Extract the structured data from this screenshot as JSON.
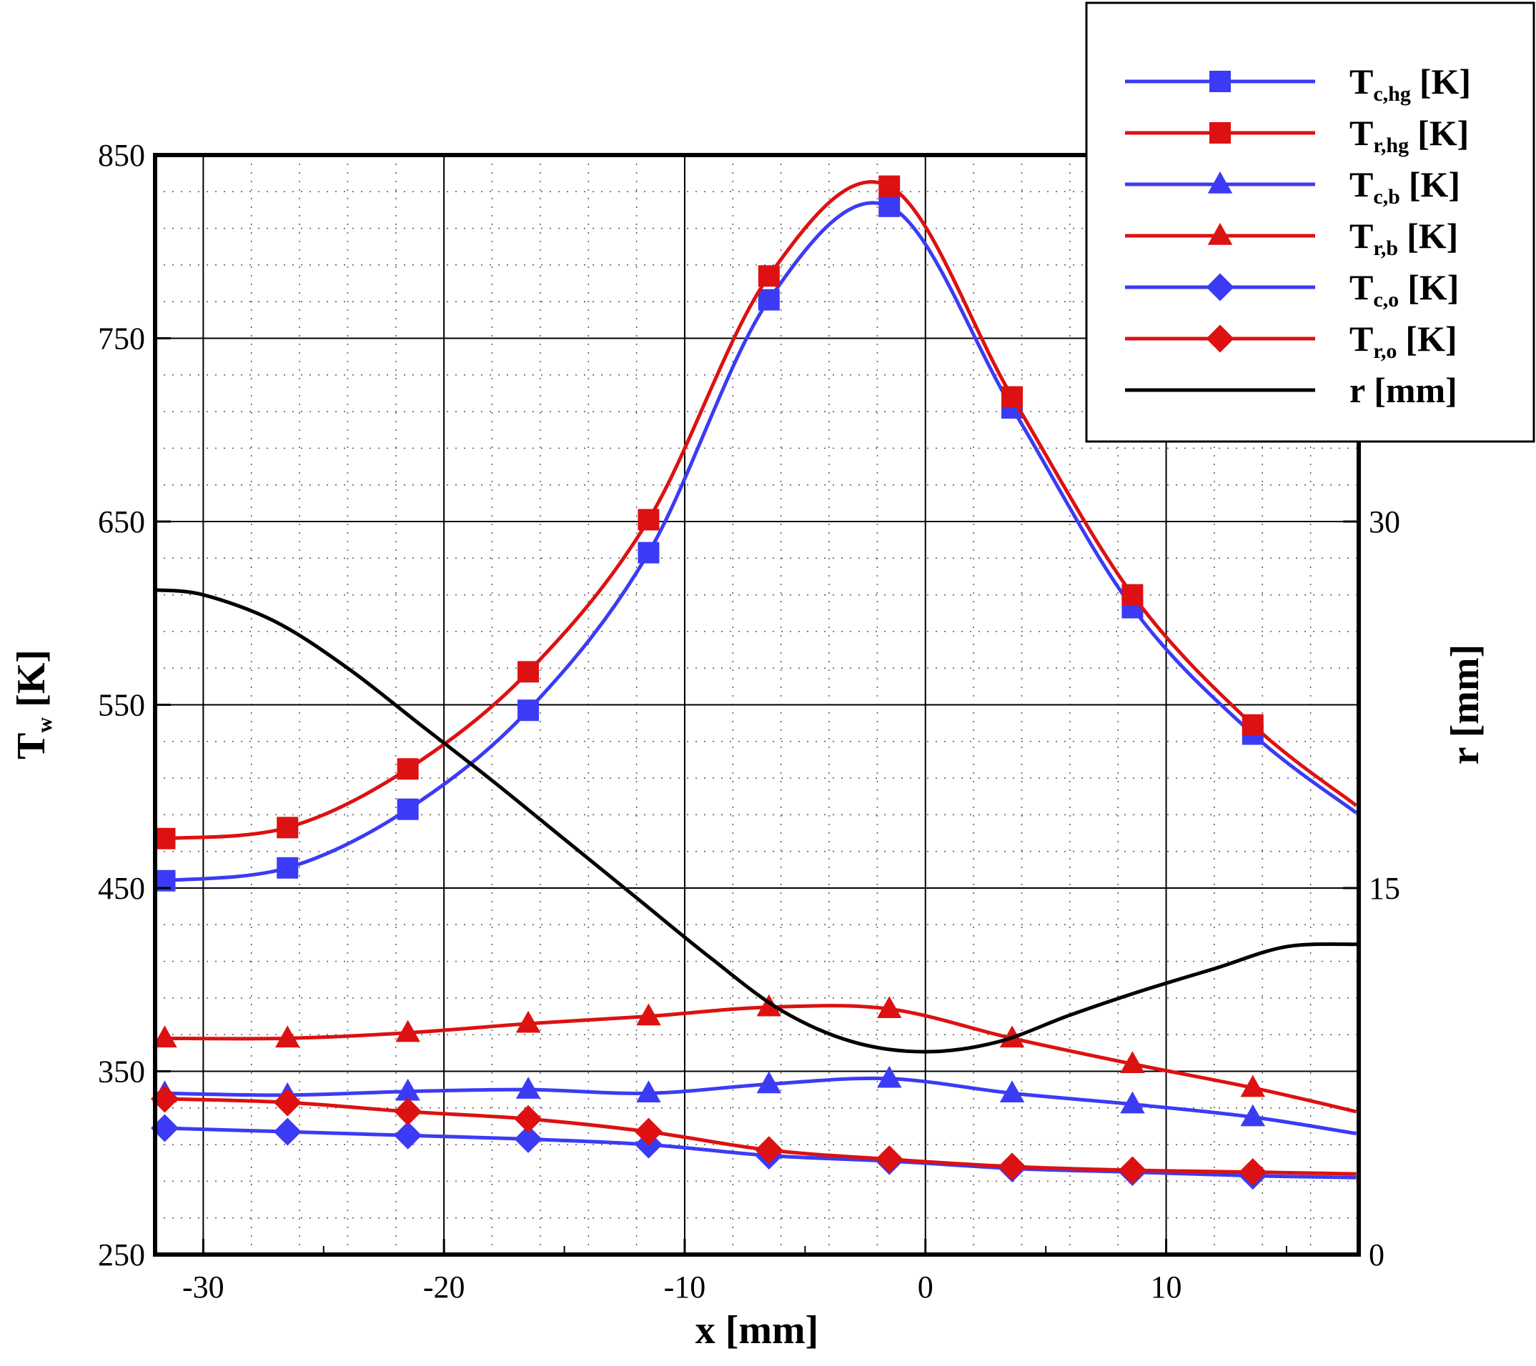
{
  "chart_data": {
    "type": "line",
    "title": "",
    "xlabel": "x [mm]",
    "ylabel": "T_w [K]",
    "ylabel_main": "T",
    "ylabel_sub": "w",
    "ylabel_unit": "[K]",
    "y2label": "r [mm]",
    "xlim": [
      -32,
      18
    ],
    "ylim": [
      250,
      850
    ],
    "y2lim": [
      0,
      45
    ],
    "xticks": [
      -30,
      -20,
      -10,
      0,
      10
    ],
    "yticks": [
      250,
      350,
      450,
      550,
      650,
      750,
      850
    ],
    "y2ticks": [
      0,
      15,
      30
    ],
    "grid": true,
    "legend_position": "top-right",
    "series": [
      {
        "name": "T_c,hg [K]",
        "legend_main": "T",
        "legend_sub": "c,hg",
        "legend_unit": "[K]",
        "color": "#3b3bf5",
        "marker": "square",
        "axis": "left",
        "x": [
          -31.6,
          -26.5,
          -21.5,
          -16.5,
          -11.5,
          -6.5,
          -1.5,
          3.6,
          8.6,
          13.6,
          17.9
        ],
        "values": [
          454,
          461,
          493,
          547,
          633,
          771,
          822,
          712,
          603,
          534,
          491
        ],
        "marker_x": [
          -31.6,
          -26.5,
          -21.5,
          -16.5,
          -11.5,
          -6.5,
          -1.5,
          3.6,
          8.6,
          13.6
        ]
      },
      {
        "name": "T_r,hg [K]",
        "legend_main": "T",
        "legend_sub": "r,hg",
        "legend_unit": "[K]",
        "color": "#dd1111",
        "marker": "square",
        "axis": "left",
        "x": [
          -31.6,
          -26.5,
          -21.5,
          -16.5,
          -11.5,
          -6.5,
          -1.5,
          3.6,
          8.6,
          13.6,
          17.9
        ],
        "values": [
          477,
          483,
          515,
          568,
          651,
          784,
          833,
          718,
          610,
          539,
          495
        ],
        "marker_x": [
          -31.6,
          -26.5,
          -21.5,
          -16.5,
          -11.5,
          -6.5,
          -1.5,
          3.6,
          8.6,
          13.6
        ]
      },
      {
        "name": "T_c,b [K]",
        "legend_main": "T",
        "legend_sub": "c,b",
        "legend_unit": "[K]",
        "color": "#3b3bf5",
        "marker": "triangle",
        "axis": "left",
        "x": [
          -31.6,
          -26.5,
          -21.5,
          -16.5,
          -11.5,
          -6.5,
          -1.5,
          3.6,
          8.6,
          13.6,
          17.9
        ],
        "values": [
          338,
          337,
          339,
          340,
          338,
          343,
          346,
          338,
          332,
          325,
          316
        ],
        "marker_x": [
          -31.6,
          -26.5,
          -21.5,
          -16.5,
          -11.5,
          -6.5,
          -1.5,
          3.6,
          8.6,
          13.6
        ]
      },
      {
        "name": "T_r,b [K]",
        "legend_main": "T",
        "legend_sub": "r,b",
        "legend_unit": "[K]",
        "color": "#dd1111",
        "marker": "triangle",
        "axis": "left",
        "x": [
          -31.6,
          -26.5,
          -21.5,
          -16.5,
          -11.5,
          -6.5,
          -1.5,
          3.6,
          8.6,
          13.6,
          17.9
        ],
        "values": [
          368,
          368,
          371,
          376,
          380,
          385,
          384,
          368,
          354,
          341,
          328
        ],
        "marker_x": [
          -31.6,
          -26.5,
          -21.5,
          -16.5,
          -11.5,
          -6.5,
          -1.5,
          3.6,
          8.6,
          13.6
        ]
      },
      {
        "name": "T_c,o [K]",
        "legend_main": "T",
        "legend_sub": "c,o",
        "legend_unit": "[K]",
        "color": "#3b3bf5",
        "marker": "diamond",
        "axis": "left",
        "x": [
          -31.6,
          -26.5,
          -21.5,
          -16.5,
          -11.5,
          -6.5,
          -1.5,
          3.6,
          8.6,
          13.6,
          17.9
        ],
        "values": [
          319,
          317,
          315,
          313,
          310,
          304,
          301,
          297,
          295,
          293,
          292
        ],
        "marker_x": [
          -31.6,
          -26.5,
          -21.5,
          -16.5,
          -11.5,
          -6.5,
          -1.5,
          3.6,
          8.6,
          13.6
        ]
      },
      {
        "name": "T_r,o [K]",
        "legend_main": "T",
        "legend_sub": "r,o",
        "legend_unit": "[K]",
        "color": "#dd1111",
        "marker": "diamond",
        "axis": "left",
        "x": [
          -31.6,
          -26.5,
          -21.5,
          -16.5,
          -11.5,
          -6.5,
          -1.5,
          3.6,
          8.6,
          13.6,
          17.9
        ],
        "values": [
          335,
          333,
          328,
          324,
          317,
          307,
          302,
          298,
          296,
          295,
          294
        ],
        "marker_x": [
          -31.6,
          -26.5,
          -21.5,
          -16.5,
          -11.5,
          -6.5,
          -1.5,
          3.6,
          8.6,
          13.6
        ]
      },
      {
        "name": "r [mm]",
        "legend_main": "r",
        "legend_sub": "",
        "legend_unit": "[mm]",
        "color": "#000000",
        "marker": "none",
        "axis": "right",
        "x": [
          -32,
          -30,
          -27,
          -24,
          -21,
          -18,
          -15,
          -12,
          -9,
          -6,
          -3,
          0,
          3,
          6,
          9,
          12,
          15,
          18
        ],
        "values": [
          27.2,
          27.0,
          25.9,
          24.0,
          21.7,
          19.4,
          17.0,
          14.6,
          12.2,
          10.0,
          8.7,
          8.3,
          8.7,
          9.8,
          10.8,
          11.7,
          12.6,
          12.7
        ],
        "marker_x": []
      }
    ]
  }
}
